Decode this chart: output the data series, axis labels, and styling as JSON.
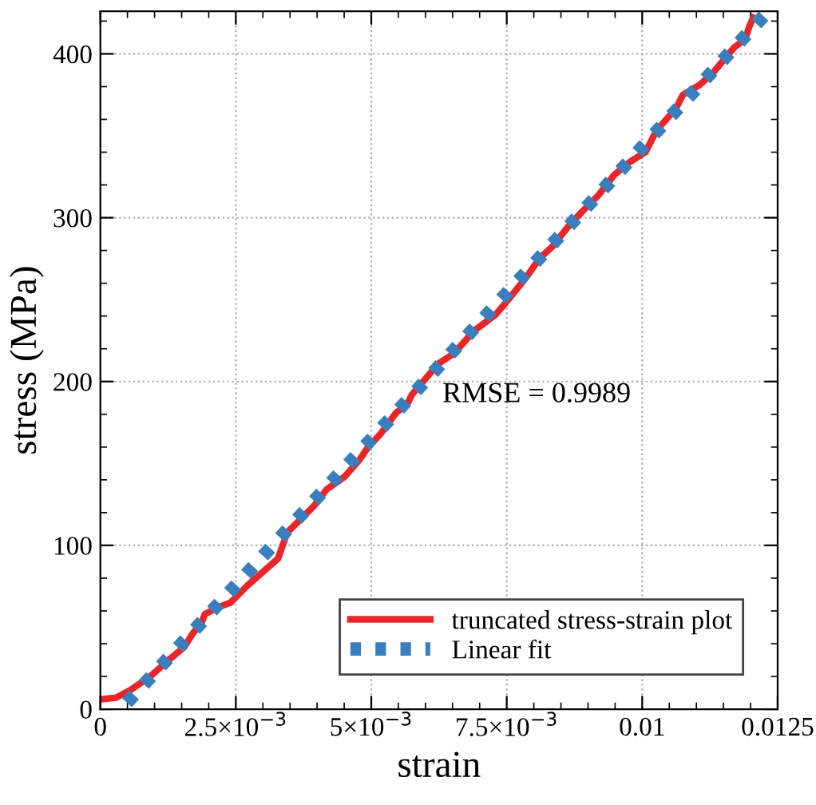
{
  "chart_data": {
    "type": "line",
    "xlabel": "strain",
    "ylabel": "stress (MPa)",
    "xlim": [
      0,
      0.0125
    ],
    "ylim": [
      0,
      426
    ],
    "xticks": [
      0,
      {
        "value": 0.0025,
        "label": "2.5×10$^{−3}$"
      },
      {
        "value": 0.005,
        "label": "5×10$^{−3}$"
      },
      {
        "value": 0.0075,
        "label": "7.5×10$^{−3}$"
      },
      0.01,
      0.0125
    ],
    "yticks": [
      0,
      100,
      200,
      300,
      400
    ],
    "grid": true,
    "legend": "bottom right",
    "annotations": [
      "RMSE = 0.9989"
    ],
    "series": [
      {
        "name": "truncated stress-strain plot",
        "color": "#e8262a",
        "line_style": "solid",
        "x": [
          0,
          0.00029,
          0.00057,
          0.00092,
          0.00126,
          0.00155,
          0.0017,
          0.00187,
          0.00193,
          0.00216,
          0.0024,
          0.0027,
          0.00287,
          0.00328,
          0.00345,
          0.0037,
          0.00394,
          0.00417,
          0.00451,
          0.0048,
          0.00494,
          0.00517,
          0.00546,
          0.00566,
          0.00575,
          0.00624,
          0.00652,
          0.0069,
          0.0073,
          0.00753,
          0.00787,
          0.0081,
          0.00833,
          0.00862,
          0.0089,
          0.0092,
          0.00948,
          0.00977,
          0.01006,
          0.01026,
          0.01063,
          0.01075,
          0.01106,
          0.01132,
          0.0117,
          0.0119,
          0.01198,
          0.01205
        ],
        "values": [
          6,
          7,
          12,
          20,
          30,
          38,
          46,
          53,
          58,
          62,
          65,
          75,
          80,
          92,
          108,
          116,
          124,
          134,
          142,
          153,
          160,
          168,
          181,
          186,
          192,
          211,
          217,
          231,
          241,
          250,
          264,
          275,
          282,
          294,
          304,
          314,
          326,
          334,
          340,
          353,
          367,
          375,
          381,
          389,
          404,
          409,
          417,
          422
        ]
      },
      {
        "name": "Linear fit",
        "color": "#3a7fbd",
        "line_style": "dotted",
        "x": [
          0.00049,
          0.01224
        ],
        "values": [
          4,
          423
        ]
      }
    ]
  }
}
